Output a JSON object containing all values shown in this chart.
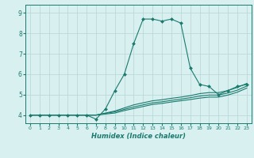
{
  "title": "",
  "xlabel": "Humidex (Indice chaleur)",
  "ylabel": "",
  "background_color": "#d8f0f0",
  "grid_color": "#b8d4d4",
  "line_color": "#1a7a6e",
  "xlim": [
    -0.5,
    23.5
  ],
  "ylim": [
    3.6,
    9.4
  ],
  "yticks": [
    4,
    5,
    6,
    7,
    8,
    9
  ],
  "xticks": [
    0,
    1,
    2,
    3,
    4,
    5,
    6,
    7,
    8,
    9,
    10,
    11,
    12,
    13,
    14,
    15,
    16,
    17,
    18,
    19,
    20,
    21,
    22,
    23
  ],
  "series": [
    {
      "x": [
        0,
        1,
        2,
        3,
        4,
        5,
        6,
        7,
        8,
        9,
        10,
        11,
        12,
        13,
        14,
        15,
        16,
        17,
        18,
        19,
        20,
        21,
        22,
        23
      ],
      "y": [
        4.0,
        4.0,
        4.0,
        4.0,
        4.0,
        4.0,
        4.0,
        3.8,
        4.3,
        5.2,
        6.0,
        7.5,
        8.7,
        8.7,
        8.6,
        8.7,
        8.5,
        6.3,
        5.5,
        5.4,
        5.0,
        5.2,
        5.4,
        5.5
      ],
      "marker": "D",
      "markersize": 2.0
    },
    {
      "x": [
        0,
        1,
        2,
        3,
        4,
        5,
        6,
        7,
        8,
        9,
        10,
        11,
        12,
        13,
        14,
        15,
        16,
        17,
        18,
        19,
        20,
        21,
        22,
        23
      ],
      "y": [
        4.0,
        4.0,
        4.0,
        4.0,
        4.0,
        4.0,
        4.0,
        4.0,
        4.1,
        4.2,
        4.35,
        4.5,
        4.6,
        4.7,
        4.75,
        4.82,
        4.88,
        4.95,
        5.05,
        5.1,
        5.1,
        5.2,
        5.35,
        5.55
      ],
      "marker": null,
      "markersize": 0
    },
    {
      "x": [
        0,
        1,
        2,
        3,
        4,
        5,
        6,
        7,
        8,
        9,
        10,
        11,
        12,
        13,
        14,
        15,
        16,
        17,
        18,
        19,
        20,
        21,
        22,
        23
      ],
      "y": [
        4.0,
        4.0,
        4.0,
        4.0,
        4.0,
        4.0,
        4.0,
        4.0,
        4.08,
        4.16,
        4.28,
        4.4,
        4.5,
        4.6,
        4.65,
        4.72,
        4.78,
        4.85,
        4.93,
        4.98,
        4.98,
        5.08,
        5.22,
        5.42
      ],
      "marker": null,
      "markersize": 0
    },
    {
      "x": [
        0,
        1,
        2,
        3,
        4,
        5,
        6,
        7,
        8,
        9,
        10,
        11,
        12,
        13,
        14,
        15,
        16,
        17,
        18,
        19,
        20,
        21,
        22,
        23
      ],
      "y": [
        4.0,
        4.0,
        4.0,
        4.0,
        4.0,
        4.0,
        4.0,
        4.0,
        4.05,
        4.1,
        4.22,
        4.32,
        4.42,
        4.52,
        4.57,
        4.64,
        4.7,
        4.76,
        4.83,
        4.88,
        4.88,
        4.98,
        5.12,
        5.32
      ],
      "marker": null,
      "markersize": 0
    }
  ]
}
